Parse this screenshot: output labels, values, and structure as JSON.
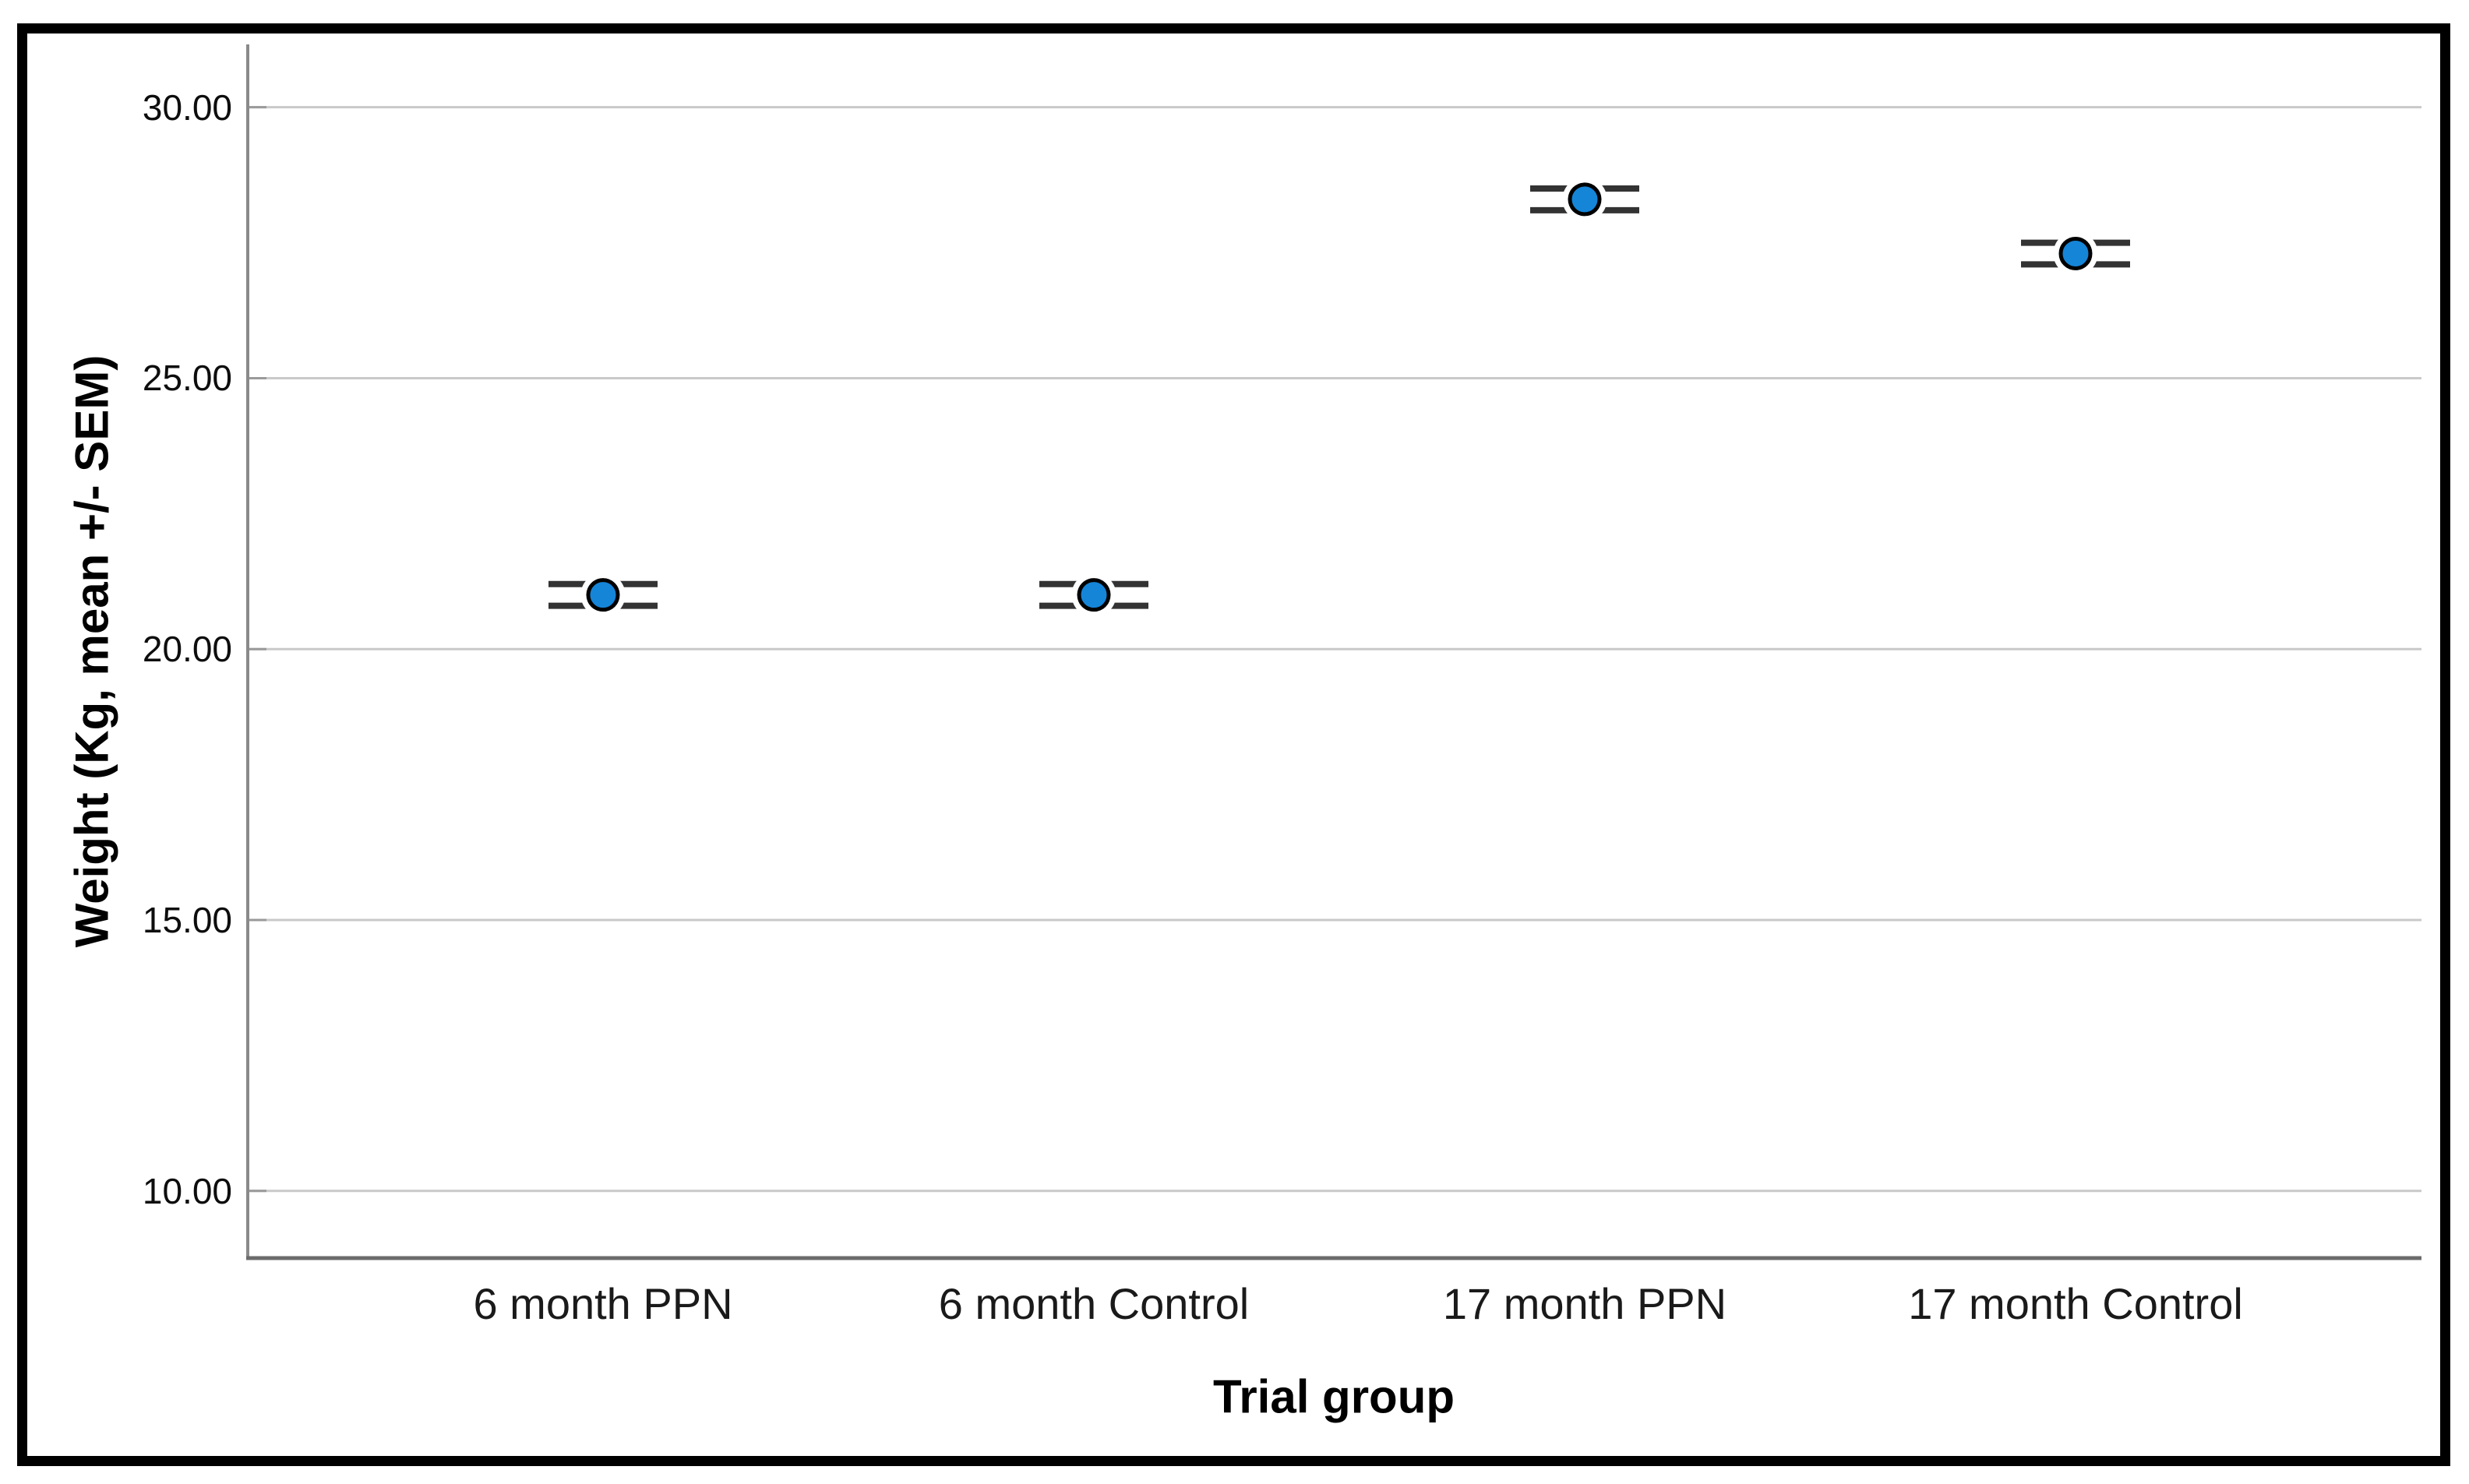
{
  "chart_data": {
    "type": "scatter",
    "subtype": "error-bar-means",
    "title": "",
    "xlabel": "Trial group",
    "ylabel": "Weight (Kg, mean +/- SEM)",
    "categories": [
      "6 month PPN",
      "6 month Control",
      "17 month PPN",
      "17 month Control"
    ],
    "series": [
      {
        "means": [
          21.0,
          21.0,
          28.3,
          27.3
        ],
        "sems": [
          0.2,
          0.2,
          0.2,
          0.2
        ]
      }
    ],
    "yticks": [
      10,
      15,
      20,
      25,
      30
    ],
    "ytick_labels": [
      "10.00",
      "15.00",
      "20.00",
      "25.00",
      "30.00"
    ],
    "ylim": [
      8.76,
      31.16
    ],
    "grid": "horizontal-only",
    "legend": "none",
    "colors": {
      "marker_fill": "#1585d8",
      "marker_outline": "#000000",
      "marker_halo": "#ffffff",
      "errorbar": "#333333",
      "gridline": "#c9c9c9",
      "y_axis_line": "#8a8a8a",
      "x_axis_line": "#6b6b6b",
      "frame": "#000000",
      "text": "#000000"
    }
  }
}
